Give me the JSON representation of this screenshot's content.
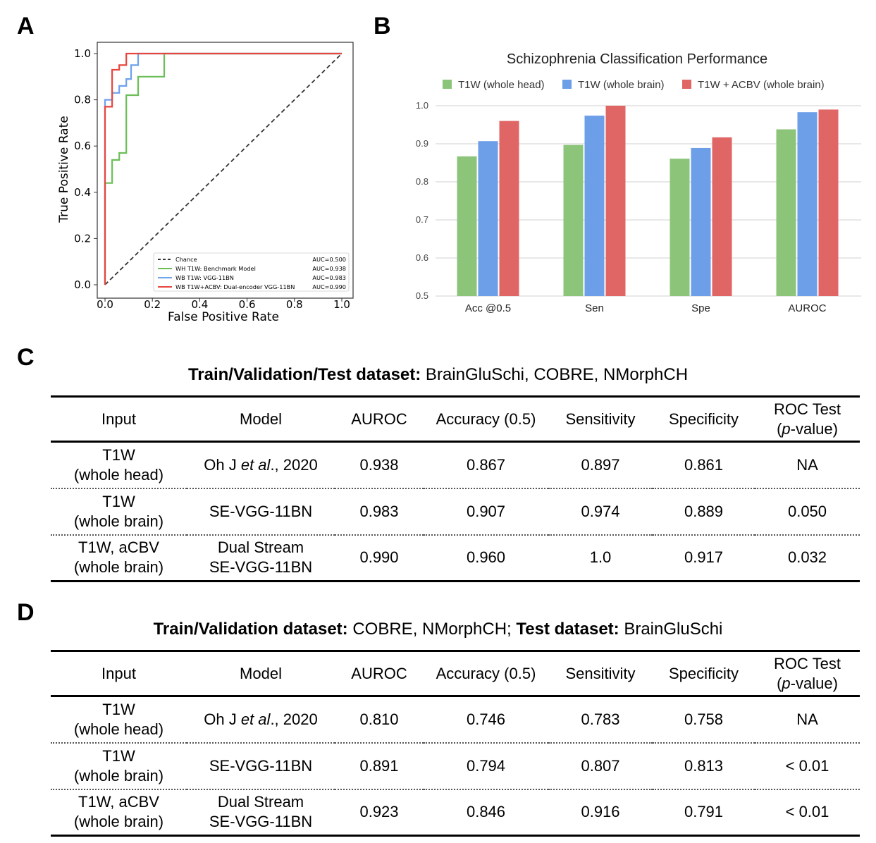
{
  "panels": {
    "a": "A",
    "b": "B",
    "c": "C",
    "d": "D"
  },
  "chart_data": [
    {
      "type": "line",
      "panel": "A",
      "xlabel": "False Positive Rate",
      "ylabel": "True Positive Rate",
      "xlim": [
        0,
        1
      ],
      "ylim": [
        0,
        1
      ],
      "ticks": [
        "0.0",
        "0.2",
        "0.4",
        "0.6",
        "0.8",
        "1.0"
      ],
      "legend_position": "lower-right",
      "series": [
        {
          "name": "Chance",
          "auc": "AUC=0.500",
          "color": "#333333",
          "dashed": true,
          "points": [
            [
              0,
              0
            ],
            [
              1,
              1
            ]
          ]
        },
        {
          "name": "WH T1W: Benchmark Model",
          "auc": "AUC=0.938",
          "color": "#6cbf58",
          "points": [
            [
              0,
              0
            ],
            [
              0,
              0.44
            ],
            [
              0.03,
              0.44
            ],
            [
              0.03,
              0.54
            ],
            [
              0.06,
              0.54
            ],
            [
              0.06,
              0.57
            ],
            [
              0.09,
              0.57
            ],
            [
              0.09,
              0.82
            ],
            [
              0.14,
              0.82
            ],
            [
              0.14,
              0.9
            ],
            [
              0.25,
              0.9
            ],
            [
              0.25,
              1.0
            ],
            [
              1,
              1
            ]
          ]
        },
        {
          "name": "WB T1W: VGG-11BN",
          "auc": "AUC=0.983",
          "color": "#6ea2ec",
          "points": [
            [
              0,
              0
            ],
            [
              0,
              0.8
            ],
            [
              0.03,
              0.8
            ],
            [
              0.03,
              0.83
            ],
            [
              0.06,
              0.83
            ],
            [
              0.06,
              0.86
            ],
            [
              0.09,
              0.86
            ],
            [
              0.09,
              0.89
            ],
            [
              0.11,
              0.89
            ],
            [
              0.11,
              0.95
            ],
            [
              0.14,
              0.95
            ],
            [
              0.14,
              1.0
            ],
            [
              1,
              1
            ]
          ]
        },
        {
          "name": "WB T1W+ACBV: Dual-encoder VGG-11BN",
          "auc": "AUC=0.990",
          "color": "#e8453f",
          "points": [
            [
              0,
              0
            ],
            [
              0,
              0.77
            ],
            [
              0.03,
              0.77
            ],
            [
              0.03,
              0.93
            ],
            [
              0.06,
              0.93
            ],
            [
              0.06,
              0.95
            ],
            [
              0.09,
              0.95
            ],
            [
              0.09,
              1.0
            ],
            [
              1,
              1
            ]
          ]
        }
      ]
    },
    {
      "type": "bar",
      "panel": "B",
      "title": "Schizophrenia Classification Performance",
      "categories": [
        "Acc @0.5",
        "Sen",
        "Spe",
        "AUROC"
      ],
      "ylim": [
        0.5,
        1.0
      ],
      "yticks": [
        "0.5",
        "0.6",
        "0.7",
        "0.8",
        "0.9",
        "1.0"
      ],
      "grid": true,
      "legend_position": "top",
      "series": [
        {
          "name": "T1W (whole head)",
          "color": "#8cc57a",
          "values": [
            0.867,
            0.897,
            0.861,
            0.938
          ]
        },
        {
          "name": "T1W (whole brain)",
          "color": "#6d9ee8",
          "values": [
            0.907,
            0.974,
            0.889,
            0.983
          ]
        },
        {
          "name": "T1W + ACBV (whole brain)",
          "color": "#e06666",
          "values": [
            0.96,
            1.0,
            0.917,
            0.99
          ]
        }
      ]
    }
  ],
  "table_c": {
    "title_bold": "Train/Validation/Test dataset:",
    "title_rest": " BrainGluSchi, COBRE, NMorphCH",
    "headers": {
      "input": "Input",
      "model": "Model",
      "auroc": "AUROC",
      "accuracy": "Accuracy (0.5)",
      "sensitivity": "Sensitivity",
      "specificity": "Specificity",
      "roc_1": "ROC Test",
      "roc_p": "p",
      "roc_2": "-value)",
      "roc_open": "("
    },
    "rows": [
      {
        "input_1": "T1W",
        "input_2": "(whole head)",
        "model_1": "Oh J ",
        "model_em": "et al",
        "model_2": "., 2020",
        "auroc": "0.938",
        "accuracy": "0.867",
        "sensitivity": "0.897",
        "specificity": "0.861",
        "roc": "NA"
      },
      {
        "input_1": "T1W",
        "input_2": "(whole brain)",
        "model": "SE-VGG-11BN",
        "auroc": "0.983",
        "accuracy": "0.907",
        "sensitivity": "0.974",
        "specificity": "0.889",
        "roc": "0.050"
      },
      {
        "input_1": "T1W, aCBV",
        "input_2": "(whole brain)",
        "model_1": "Dual Stream",
        "model_2": "SE-VGG-11BN",
        "auroc": "0.990",
        "accuracy": "0.960",
        "sensitivity": "1.0",
        "specificity": "0.917",
        "roc": "0.032"
      }
    ]
  },
  "table_d": {
    "title_bold_1": "Train/Validation dataset:",
    "title_rest_1": " COBRE, NMorphCH; ",
    "title_bold_2": "Test dataset:",
    "title_rest_2": " BrainGluSchi",
    "rows": [
      {
        "input_1": "T1W",
        "input_2": "(whole head)",
        "model_1": "Oh J ",
        "model_em": "et al",
        "model_2": "., 2020",
        "auroc": "0.810",
        "accuracy": "0.746",
        "sensitivity": "0.783",
        "specificity": "0.758",
        "roc": "NA"
      },
      {
        "input_1": "T1W",
        "input_2": "(whole brain)",
        "model": "SE-VGG-11BN",
        "auroc": "0.891",
        "accuracy": "0.794",
        "sensitivity": "0.807",
        "specificity": "0.813",
        "roc": "< 0.01"
      },
      {
        "input_1": "T1W, aCBV",
        "input_2": "(whole brain)",
        "model_1": "Dual Stream",
        "model_2": "SE-VGG-11BN",
        "auroc": "0.923",
        "accuracy": "0.846",
        "sensitivity": "0.916",
        "specificity": "0.791",
        "roc": "< 0.01"
      }
    ]
  }
}
